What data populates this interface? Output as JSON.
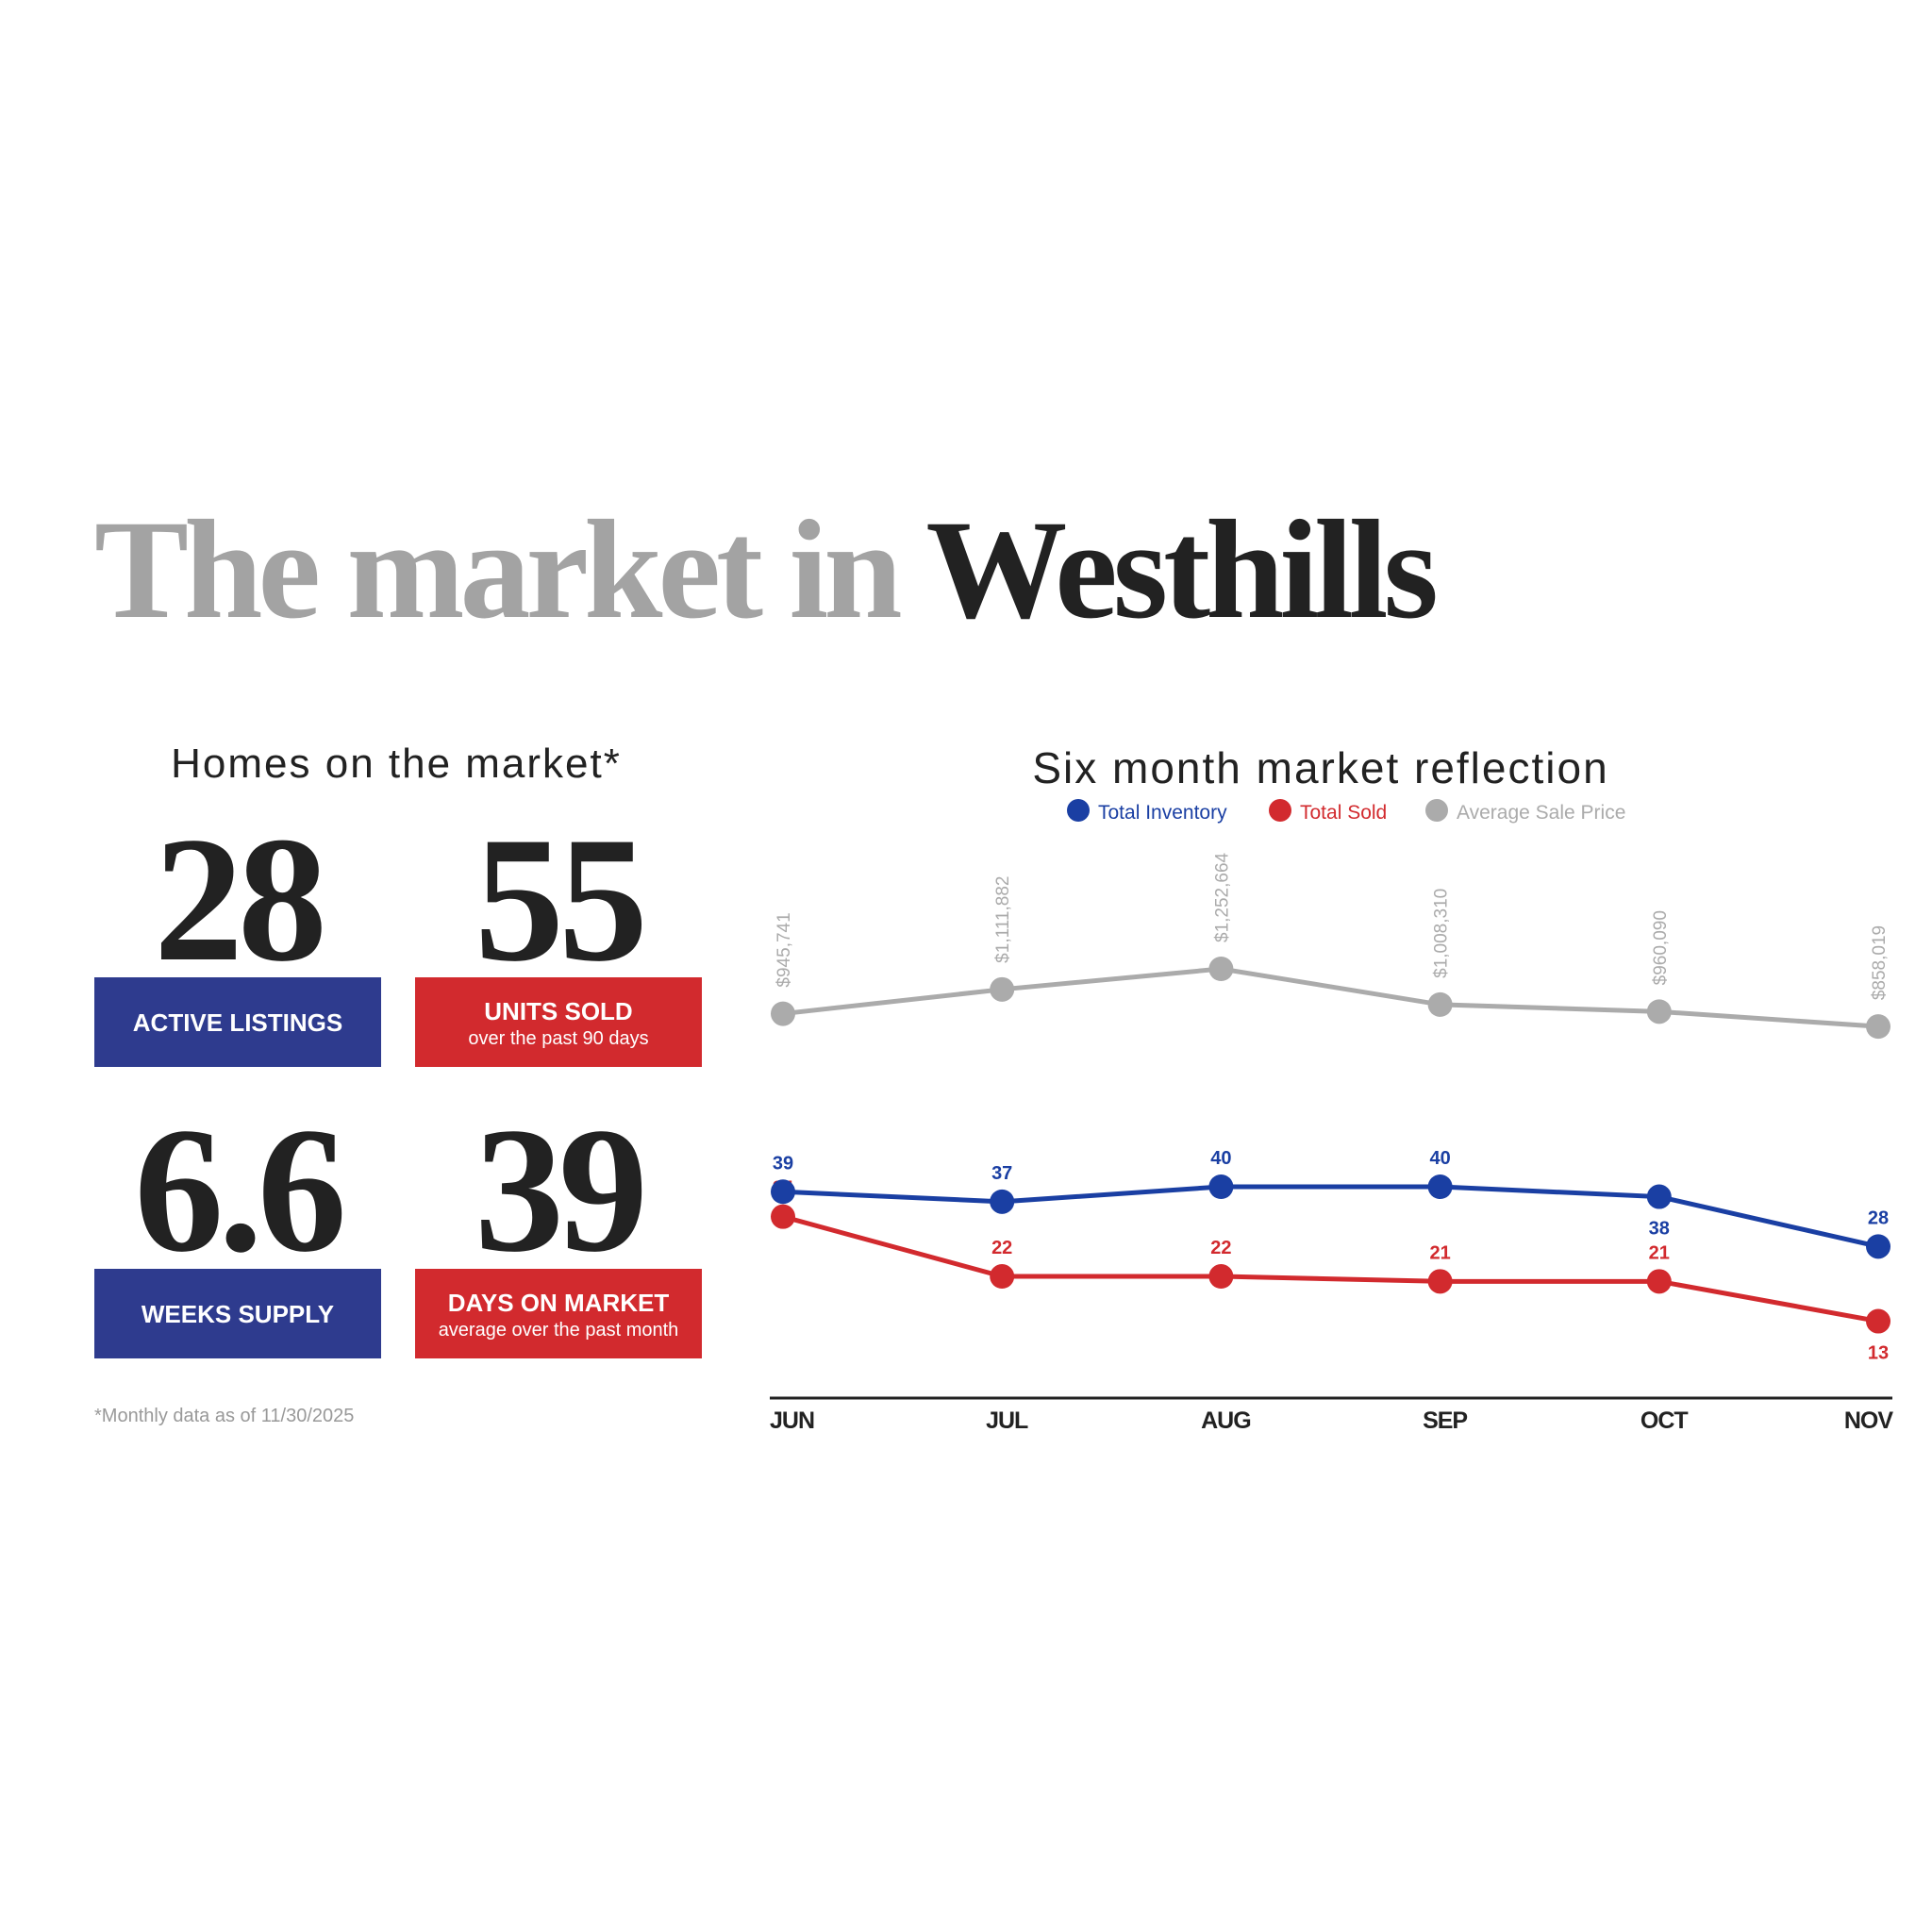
{
  "header": {
    "title_part1": "The market in",
    "title_part2": "Westhills"
  },
  "stats": {
    "title": "Homes on the market*",
    "items": [
      {
        "value": "28",
        "label": "ACTIVE LISTINGS"
      },
      {
        "value": "55",
        "label": "UNITS SOLD",
        "sublabel": "over the past 90 days"
      },
      {
        "value": "6.6",
        "label": "WEEKS SUPPLY"
      },
      {
        "value": "39",
        "label": "DAYS ON MARKET",
        "sublabel": "average over the past month"
      }
    ],
    "footnote": "*Monthly data as of 11/30/2025"
  },
  "chart_data": {
    "type": "line",
    "title": "Six month market reflection",
    "categories": [
      "JUN",
      "JUL",
      "AUG",
      "SEP",
      "OCT",
      "NOV"
    ],
    "series": [
      {
        "name": "Total Inventory",
        "color": "#1a3fa3",
        "values": [
          39,
          37,
          40,
          40,
          38,
          28
        ]
      },
      {
        "name": "Total Sold",
        "color": "#d22a2e",
        "values": [
          34,
          22,
          22,
          21,
          21,
          13
        ]
      },
      {
        "name": "Average Sale Price",
        "color": "#ababab",
        "axis": "y2",
        "values": [
          945741,
          1111882,
          1252664,
          1008310,
          960090,
          858019
        ],
        "value_labels": [
          "$945,741",
          "$1,111,882",
          "$1,252,664",
          "$1,008,310",
          "$960,090",
          "$858,019"
        ]
      }
    ]
  }
}
